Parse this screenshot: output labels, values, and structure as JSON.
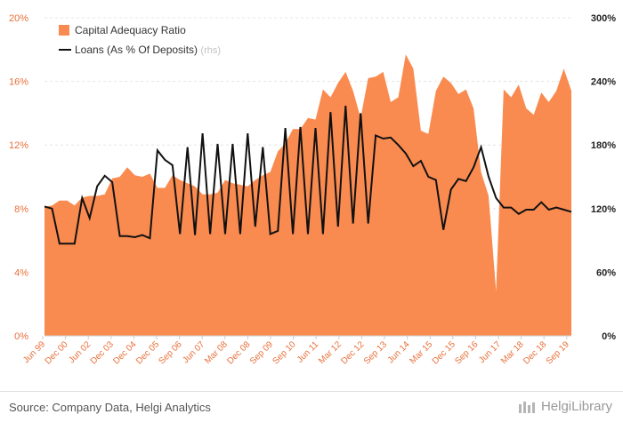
{
  "chart_data": {
    "type": "area+line",
    "title": "",
    "legend": [
      {
        "label": "Capital Adequacy Ratio",
        "color": "#f98b50",
        "kind": "area"
      },
      {
        "label": "Loans (As % Of Deposits)",
        "suffix": "(rhs)",
        "color": "#111111",
        "kind": "line"
      }
    ],
    "left_axis": {
      "ylim": [
        0,
        20
      ],
      "ticks": [
        "0%",
        "4%",
        "8%",
        "12%",
        "16%",
        "20%"
      ]
    },
    "right_axis": {
      "ylim": [
        0,
        300
      ],
      "ticks": [
        "0%",
        "60%",
        "120%",
        "180%",
        "240%",
        "300%"
      ]
    },
    "x_tick_labels": [
      "Jun 99",
      "Dec 00",
      "Jun 02",
      "Dec 03",
      "Dec 04",
      "Dec 05",
      "Sep 06",
      "Jun 07",
      "Mar 08",
      "Dec 08",
      "Sep 09",
      "Sep 10",
      "Jun 11",
      "Mar 12",
      "Dec 12",
      "Sep 13",
      "Jun 14",
      "Mar 15",
      "Dec 15",
      "Sep 16",
      "Jun 17",
      "Mar 18",
      "Dec 18",
      "Sep 19"
    ],
    "capital_adequacy_ratio": [
      8.1,
      8.2,
      8.5,
      8.5,
      8.2,
      8.7,
      8.8,
      8.8,
      8.9,
      9.9,
      10.0,
      10.6,
      10.1,
      10.0,
      10.2,
      9.3,
      9.3,
      10.1,
      9.8,
      9.6,
      9.4,
      8.9,
      8.9,
      9.0,
      9.8,
      9.6,
      9.5,
      9.4,
      9.8,
      10.1,
      10.3,
      11.6,
      12.1,
      13.0,
      13.0,
      13.7,
      13.6,
      15.5,
      15.0,
      15.9,
      16.6,
      15.4,
      13.7,
      16.2,
      16.3,
      16.6,
      14.7,
      15.0,
      17.7,
      16.8,
      12.9,
      12.7,
      15.4,
      16.3,
      15.9,
      15.2,
      15.5,
      14.3,
      10.3,
      8.8,
      2.8,
      15.5,
      15.0,
      15.8,
      14.3,
      13.9,
      15.3,
      14.7,
      15.4,
      16.8,
      15.4
    ],
    "loans_to_deposits": [
      122,
      120,
      87,
      87,
      87,
      130,
      111,
      141,
      151,
      145,
      94,
      94,
      93,
      95,
      92,
      175,
      166,
      161,
      96,
      178,
      95,
      191,
      96,
      181,
      96,
      181,
      96,
      191,
      103,
      178,
      96,
      99,
      196,
      96,
      197,
      96,
      196,
      96,
      211,
      103,
      217,
      106,
      210,
      106,
      189,
      186,
      187,
      180,
      172,
      160,
      165,
      150,
      147,
      100,
      138,
      148,
      146,
      159,
      178,
      150,
      130,
      121,
      121,
      115,
      119,
      119,
      126,
      119,
      121,
      119,
      117
    ]
  },
  "footer": {
    "source": "Source: Company Data, Helgi Analytics",
    "brand": "HelgiLibrary"
  }
}
